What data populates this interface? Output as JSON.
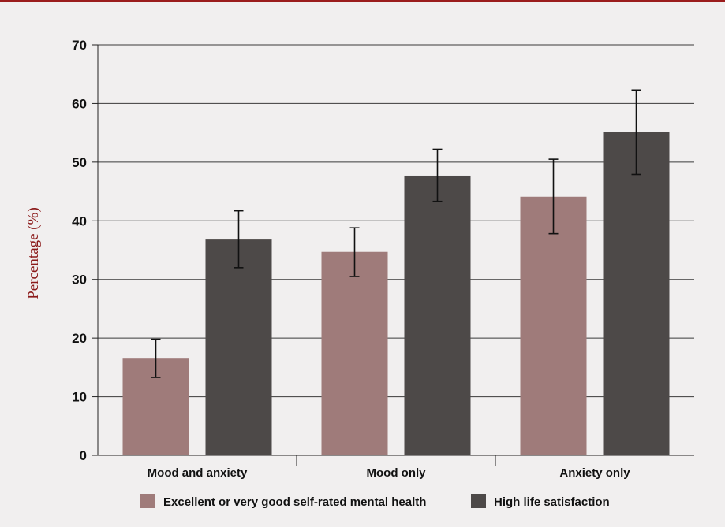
{
  "colors": {
    "top_rule": "#9b1c1c",
    "ylabel": "#8b1a1a",
    "background": "#f1efef",
    "series_1": "#9f7b7a",
    "series_2": "#4d4948",
    "gridline": "#3a3a3a"
  },
  "chart_data": {
    "type": "bar",
    "title": "",
    "xlabel": "",
    "ylabel": "Percentage (%)",
    "ylim": [
      0,
      70
    ],
    "yticks": [
      0,
      10,
      20,
      30,
      40,
      50,
      60,
      70
    ],
    "grid": true,
    "legend_position": "bottom",
    "categories": [
      "Mood and anxiety",
      "Mood only",
      "Anxiety only"
    ],
    "series": [
      {
        "name": "Excellent or very good self-rated mental health",
        "color": "#9f7b7a",
        "values": [
          16.5,
          34.7,
          44.1
        ],
        "error_low": [
          13.3,
          30.5,
          37.8
        ],
        "error_high": [
          19.8,
          38.8,
          50.5
        ]
      },
      {
        "name": "High life satisfaction",
        "color": "#4d4948",
        "values": [
          36.8,
          47.7,
          55.1
        ],
        "error_low": [
          32.0,
          43.3,
          47.9
        ],
        "error_high": [
          41.7,
          52.2,
          62.3
        ]
      }
    ]
  }
}
